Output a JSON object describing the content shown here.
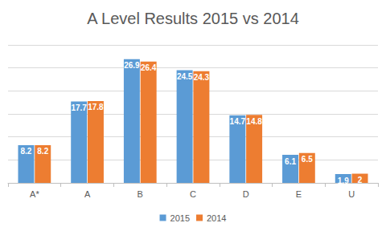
{
  "chart_data": {
    "type": "bar",
    "title": "A Level Results 2015 vs 2014",
    "categories": [
      "A*",
      "A",
      "B",
      "C",
      "D",
      "E",
      "U"
    ],
    "series": [
      {
        "name": "2015",
        "color": "#5b9bd5",
        "values": [
          8.2,
          17.7,
          26.9,
          24.5,
          14.7,
          6.1,
          1.9
        ]
      },
      {
        "name": "2014",
        "color": "#ed7d31",
        "values": [
          8.2,
          17.8,
          26.4,
          24.3,
          14.8,
          6.5,
          2
        ]
      }
    ],
    "ylim": [
      0,
      30
    ],
    "yticks": [
      0,
      5,
      10,
      15,
      20,
      25,
      30
    ],
    "grid": true,
    "legend": "bottom",
    "data_labels": true,
    "tick_labels": "x"
  }
}
